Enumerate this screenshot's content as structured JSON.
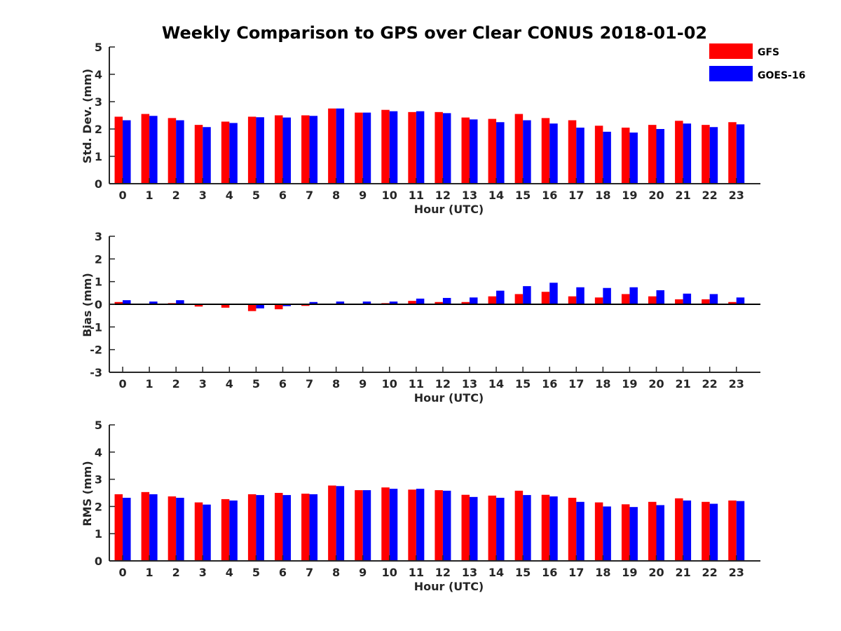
{
  "title": "Weekly Comparison to GPS over Clear CONUS 2018-01-02",
  "colors": {
    "GFS": "#ff0000",
    "GOES-16": "#0000ff"
  },
  "legend": {
    "placement": "top-right",
    "entries": [
      "GFS",
      "GOES-16"
    ]
  },
  "chart_data": [
    {
      "type": "bar",
      "title": "",
      "xlabel": "Hour (UTC)",
      "ylabel": "Std. Dev. (mm)",
      "ylim": [
        0,
        5
      ],
      "yticks": [
        "0",
        "1",
        "2",
        "3",
        "4",
        "5"
      ],
      "categories": [
        "0",
        "1",
        "2",
        "3",
        "4",
        "5",
        "6",
        "7",
        "8",
        "9",
        "10",
        "11",
        "12",
        "13",
        "14",
        "15",
        "16",
        "17",
        "18",
        "19",
        "20",
        "21",
        "22",
        "23"
      ],
      "series": [
        {
          "name": "GFS",
          "values": [
            2.45,
            2.55,
            2.4,
            2.15,
            2.27,
            2.45,
            2.5,
            2.5,
            2.75,
            2.6,
            2.7,
            2.62,
            2.62,
            2.42,
            2.37,
            2.55,
            2.4,
            2.32,
            2.12,
            2.05,
            2.15,
            2.3,
            2.15,
            2.25
          ]
        },
        {
          "name": "GOES-16",
          "values": [
            2.32,
            2.48,
            2.32,
            2.07,
            2.22,
            2.43,
            2.42,
            2.48,
            2.75,
            2.6,
            2.65,
            2.65,
            2.58,
            2.35,
            2.25,
            2.32,
            2.2,
            2.05,
            1.9,
            1.87,
            2.0,
            2.2,
            2.07,
            2.17
          ]
        }
      ]
    },
    {
      "type": "bar",
      "title": "",
      "xlabel": "Hour (UTC)",
      "ylabel": "Bias (mm)",
      "ylim": [
        -3,
        3
      ],
      "yticks": [
        "-3",
        "-2",
        "-1",
        "0",
        "1",
        "2",
        "3"
      ],
      "categories": [
        "0",
        "1",
        "2",
        "3",
        "4",
        "5",
        "6",
        "7",
        "8",
        "9",
        "10",
        "11",
        "12",
        "13",
        "14",
        "15",
        "16",
        "17",
        "18",
        "19",
        "20",
        "21",
        "22",
        "23"
      ],
      "series": [
        {
          "name": "GFS",
          "values": [
            0.1,
            0.02,
            0.05,
            -0.1,
            -0.15,
            -0.3,
            -0.22,
            -0.07,
            0.02,
            0.02,
            0.05,
            0.15,
            0.1,
            0.1,
            0.35,
            0.45,
            0.55,
            0.35,
            0.3,
            0.45,
            0.35,
            0.22,
            0.22,
            0.1
          ]
        },
        {
          "name": "GOES-16",
          "values": [
            0.18,
            0.12,
            0.18,
            0.03,
            0.0,
            -0.18,
            -0.08,
            0.1,
            0.12,
            0.12,
            0.12,
            0.25,
            0.28,
            0.3,
            0.6,
            0.8,
            0.95,
            0.75,
            0.72,
            0.75,
            0.62,
            0.47,
            0.45,
            0.3
          ]
        }
      ]
    },
    {
      "type": "bar",
      "title": "",
      "xlabel": "Hour (UTC)",
      "ylabel": "RMS (mm)",
      "ylim": [
        0,
        5
      ],
      "yticks": [
        "0",
        "1",
        "2",
        "3",
        "4",
        "5"
      ],
      "categories": [
        "0",
        "1",
        "2",
        "3",
        "4",
        "5",
        "6",
        "7",
        "8",
        "9",
        "10",
        "11",
        "12",
        "13",
        "14",
        "15",
        "16",
        "17",
        "18",
        "19",
        "20",
        "21",
        "22",
        "23"
      ],
      "series": [
        {
          "name": "GFS",
          "values": [
            2.45,
            2.53,
            2.37,
            2.15,
            2.27,
            2.45,
            2.5,
            2.47,
            2.77,
            2.6,
            2.7,
            2.62,
            2.6,
            2.43,
            2.4,
            2.58,
            2.43,
            2.32,
            2.15,
            2.08,
            2.17,
            2.3,
            2.17,
            2.22
          ]
        },
        {
          "name": "GOES-16",
          "values": [
            2.32,
            2.45,
            2.32,
            2.07,
            2.22,
            2.42,
            2.42,
            2.45,
            2.75,
            2.6,
            2.65,
            2.65,
            2.58,
            2.35,
            2.32,
            2.42,
            2.37,
            2.17,
            2.0,
            1.98,
            2.05,
            2.22,
            2.1,
            2.2
          ]
        }
      ]
    }
  ]
}
